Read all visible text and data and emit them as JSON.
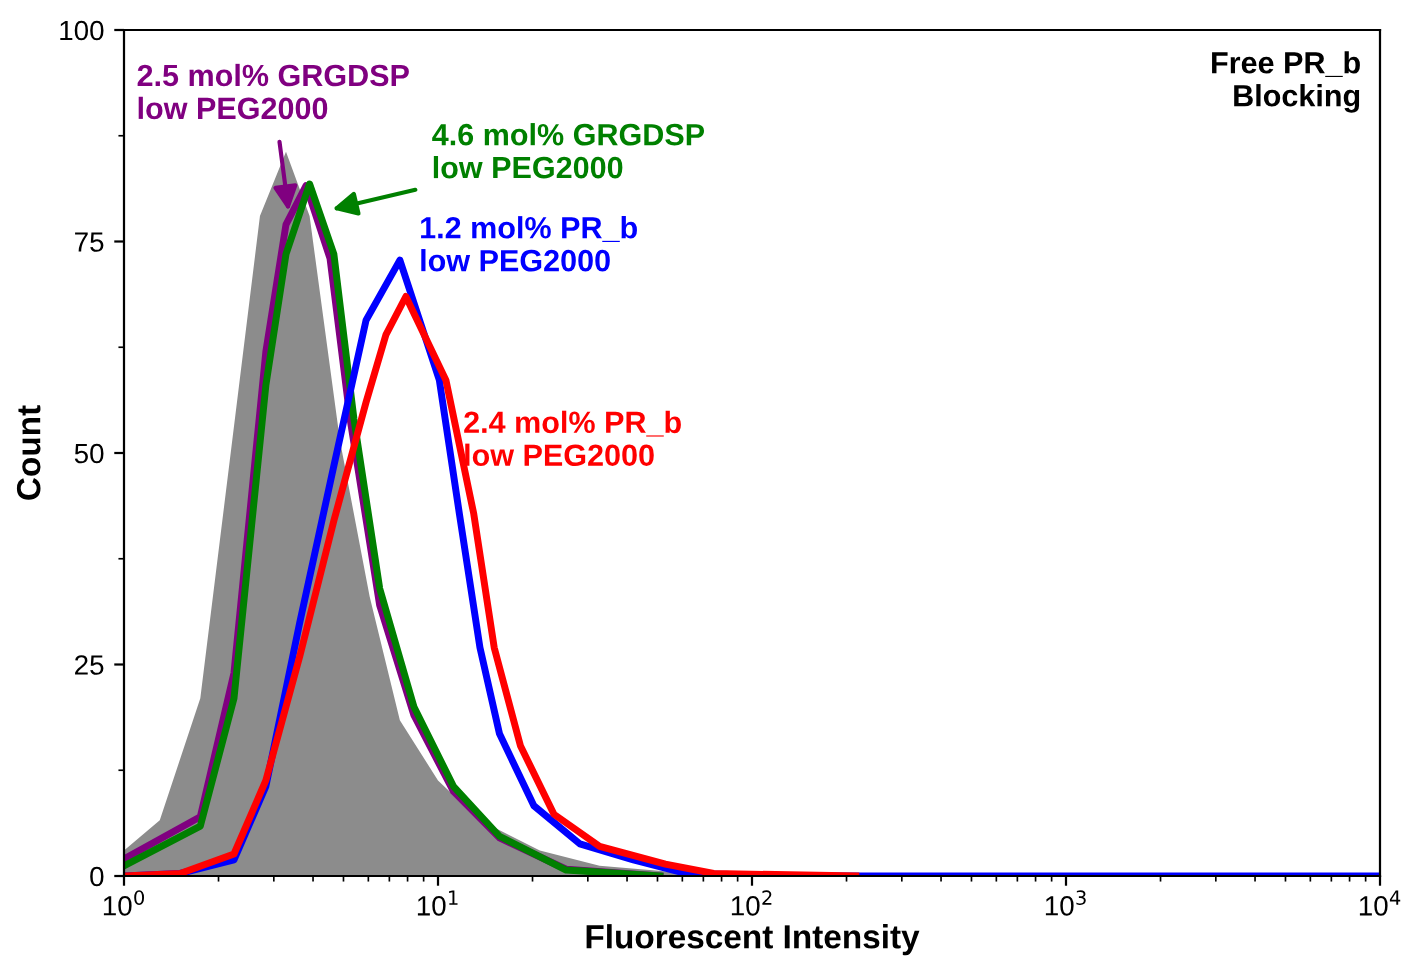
{
  "chart_data": {
    "type": "line",
    "xlabel": "Fluorescent Intensity",
    "ylabel": "Count",
    "log": "x",
    "xlim": [
      1,
      10000
    ],
    "ylim": [
      0,
      100
    ],
    "xticks": [
      {
        "value": 1,
        "label": "10$^{0}$"
      },
      {
        "value": 10,
        "label": "10$^{1}$"
      },
      {
        "value": 100,
        "label": "10$^{2}$"
      },
      {
        "value": 1000,
        "label": "10$^{3}$"
      },
      {
        "value": 10000,
        "label": "10$^{4}$"
      }
    ],
    "yticks": [
      0,
      25,
      50,
      75,
      100
    ],
    "grid": false,
    "legend": false,
    "annotations": [
      "Free PR_b\nBlocking"
    ],
    "series": [
      {
        "type": "area",
        "color": "#8c8c8c",
        "x": [
          1,
          1.3,
          1.75,
          2.17,
          2.71,
          3.28,
          3.9,
          4.87,
          6.06,
          7.56,
          10,
          13.6,
          21.1,
          32.7,
          68.1,
          142,
          10000
        ],
        "values": [
          3,
          6.6,
          21,
          49,
          78,
          85.6,
          78,
          51.5,
          33,
          18.4,
          11.3,
          6.6,
          3,
          1.2,
          0.2,
          0,
          0
        ]
      },
      {
        "name": "2.5 mol% GRGDSP\nlow PEG2000",
        "color": "#800080",
        "x": [
          1,
          1.75,
          2.24,
          2.83,
          3.28,
          3.8,
          4.53,
          5.25,
          6.52,
          8.38,
          11.2,
          15.7,
          25.6,
          50.9
        ],
        "values": [
          2,
          7,
          24,
          62,
          77,
          81.6,
          73,
          54,
          32,
          19,
          10,
          4.5,
          0.8,
          0
        ]
      },
      {
        "name": "4.6 mol% GRGDSP\nlow PEG2000",
        "color": "#008000",
        "x": [
          1,
          1.75,
          2.24,
          2.83,
          3.28,
          3.9,
          4.66,
          5.4,
          6.52,
          8.38,
          11.2,
          15.7,
          25.6,
          50.9
        ],
        "values": [
          1.2,
          5.9,
          21,
          58,
          73.5,
          81.8,
          73.5,
          54,
          34,
          20,
          10.6,
          4.7,
          0.7,
          0
        ]
      },
      {
        "name": "1.2 mol% PR_b\nlow PEG2000",
        "color": "#0000ff",
        "x": [
          1,
          1.51,
          2.24,
          2.83,
          3.63,
          4.66,
          5.9,
          7.56,
          10.1,
          11.7,
          13.6,
          15.7,
          20.2,
          28.3,
          41.9,
          61.6,
          142,
          10000
        ],
        "values": [
          0,
          0.3,
          1.9,
          10.6,
          30,
          48.5,
          65.7,
          72.8,
          58.6,
          42.8,
          27,
          16.8,
          8.3,
          3.8,
          1.9,
          0.3,
          0,
          0
        ]
      },
      {
        "name": "2.4 mol% PR_b\nlow PEG2000",
        "color": "#ff0000",
        "x": [
          1,
          1.51,
          2.24,
          2.83,
          3.63,
          4.66,
          5.9,
          6.83,
          7.9,
          10.6,
          13,
          15.1,
          18.3,
          23.4,
          32.7,
          53,
          75.5,
          214
        ],
        "values": [
          0,
          0.3,
          2.6,
          11.3,
          26,
          42,
          56,
          64,
          68.5,
          58.6,
          42.8,
          27,
          15.4,
          7.3,
          3.5,
          1.4,
          0.3,
          0
        ]
      }
    ]
  }
}
